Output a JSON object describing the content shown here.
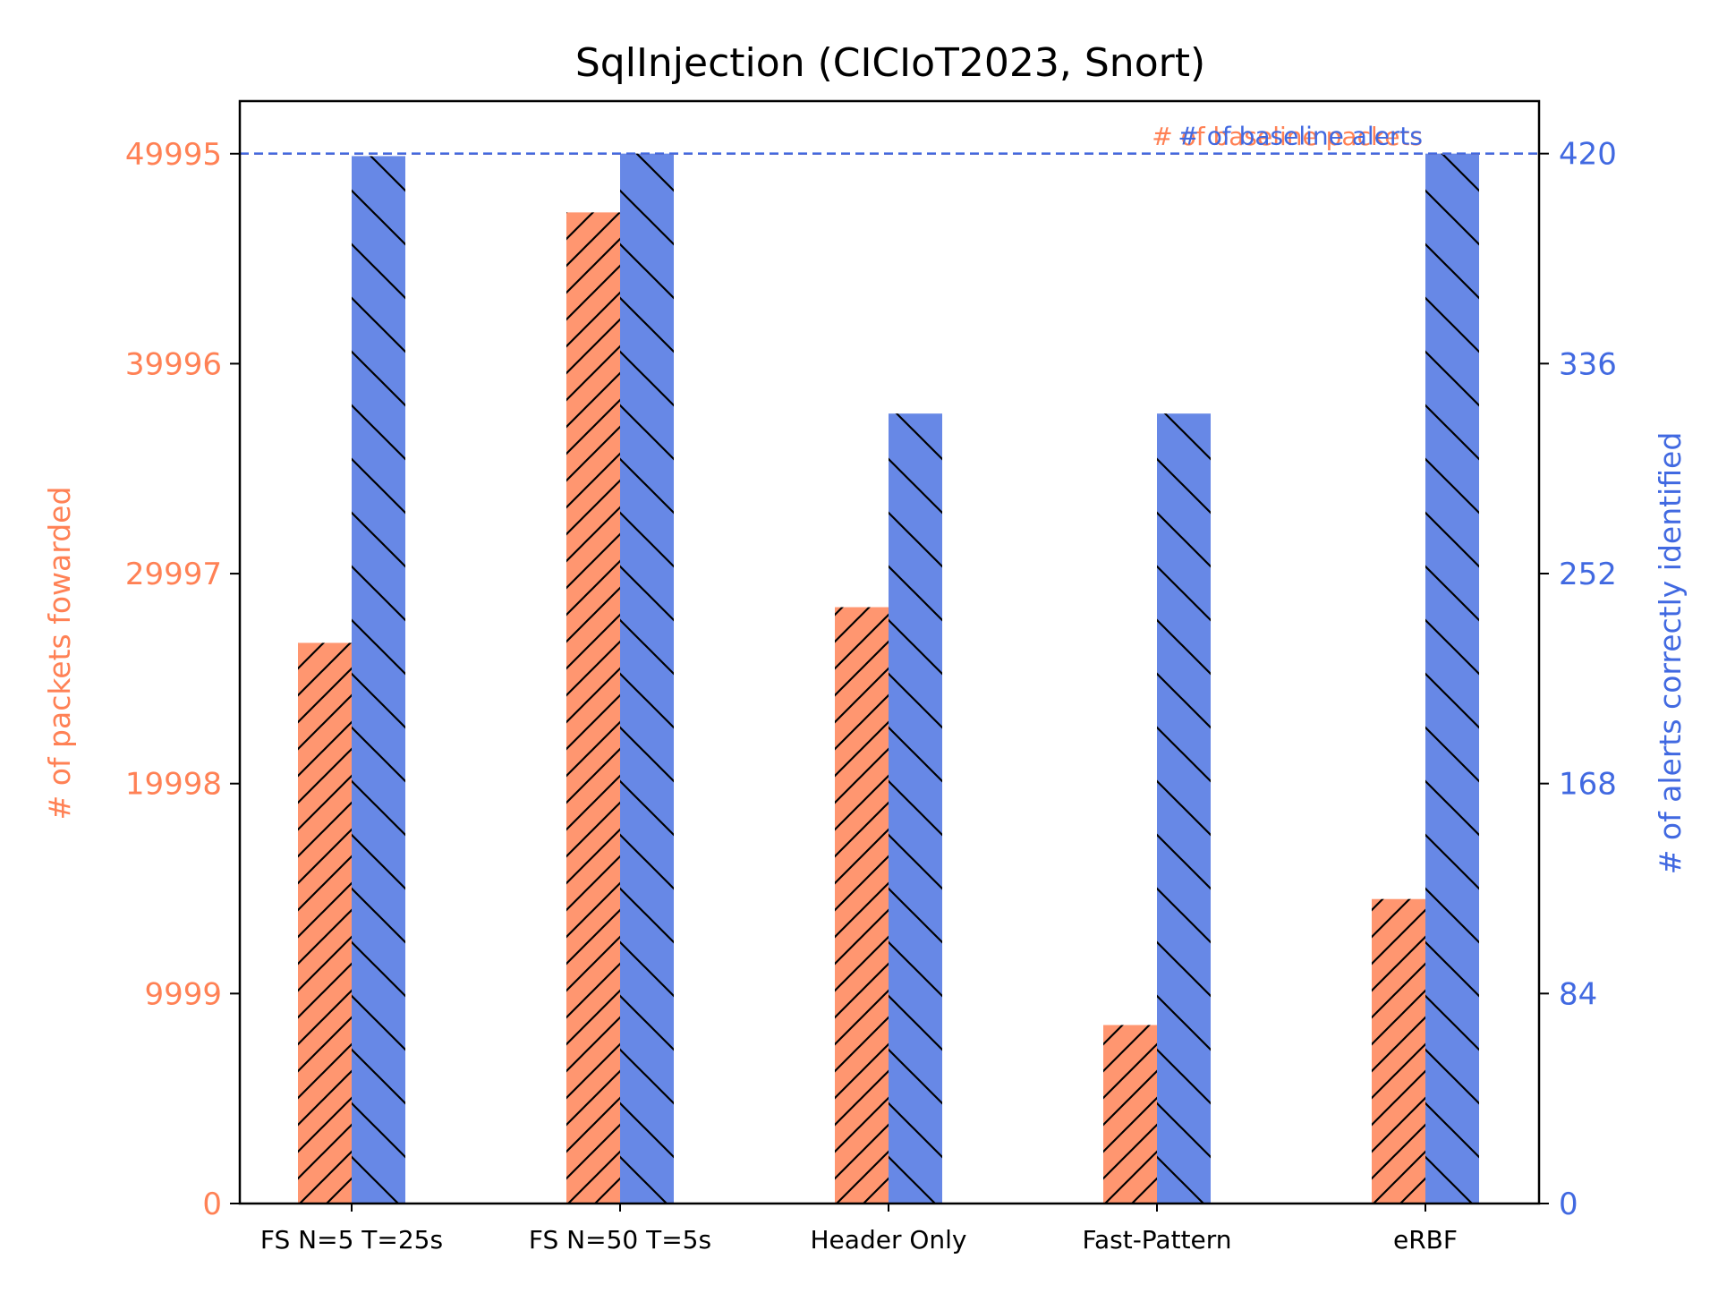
{
  "chart_data": {
    "type": "bar",
    "title": "SqlInjection (CICIoT2023, Snort)",
    "categories": [
      "FS N=5 T=25s",
      "FS N=50 T=5s",
      "Header Only",
      "Fast-Pattern",
      "eRBF"
    ],
    "series": [
      {
        "axis": "left",
        "color": "#FF9670",
        "hatch": "forward-diagonal",
        "values": [
          26700,
          47200,
          28400,
          8500,
          14500
        ]
      },
      {
        "axis": "right",
        "color": "#6788E6",
        "hatch": "back-diagonal",
        "values": [
          419,
          420,
          316,
          316,
          420
        ]
      }
    ],
    "ylabel": "# of packets fowarded",
    "y2label": "# of alerts correctly identified",
    "ylim": [
      0,
      52500
    ],
    "y2lim": [
      0,
      441
    ],
    "yticks": [
      "0",
      "9999",
      "19998",
      "29997",
      "39996",
      "49995"
    ],
    "y2ticks": [
      "0",
      "84",
      "168",
      "252",
      "336",
      "420"
    ],
    "baselines": [
      {
        "label": "# of baseline packets",
        "value": 49995,
        "axis": "left",
        "color": "#FF8155"
      },
      {
        "label": "# of baseline alerts",
        "value": 420,
        "axis": "right",
        "color": "#4169E1"
      }
    ],
    "left_axis_color": "#FF8155",
    "right_axis_color": "#4169E1",
    "grid": false,
    "legend": "none"
  }
}
